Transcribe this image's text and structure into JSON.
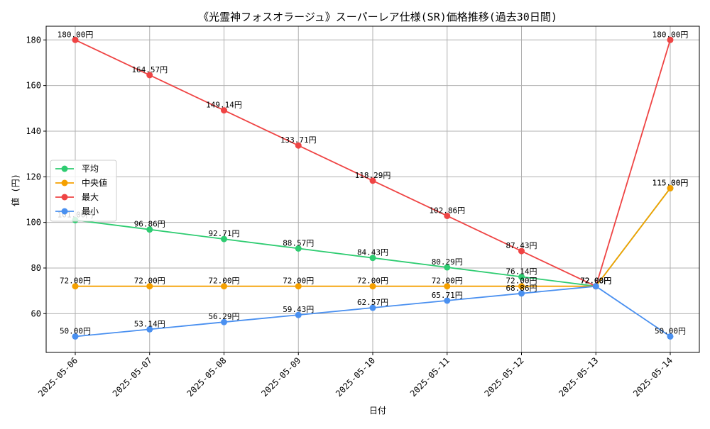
{
  "chart_data": {
    "type": "line",
    "title": "《光霊神フォスオラージュ》スーパーレア仕様(SR)価格推移(過去30日間)",
    "xlabel": "日付",
    "ylabel": "値 (円)",
    "x": [
      "2025-05-06",
      "2025-05-07",
      "2025-05-08",
      "2025-05-09",
      "2025-05-10",
      "2025-05-11",
      "2025-05-12",
      "2025-05-13",
      "2025-05-14"
    ],
    "ylim": [
      43,
      186
    ],
    "yticks": [
      60,
      80,
      100,
      120,
      140,
      160,
      180
    ],
    "grid": true,
    "legend_position": "center-left",
    "label_suffix": "円",
    "series": [
      {
        "name": "平均",
        "color": "#2ecc71",
        "values": [
          101.0,
          96.86,
          92.71,
          88.57,
          84.43,
          80.29,
          76.14,
          72.0,
          115.0
        ]
      },
      {
        "name": "中央値",
        "color": "#f5a000",
        "values": [
          72.0,
          72.0,
          72.0,
          72.0,
          72.0,
          72.0,
          72.0,
          72.0,
          115.0
        ]
      },
      {
        "name": "最大",
        "color": "#ef4444",
        "values": [
          180.0,
          164.57,
          149.14,
          133.71,
          118.29,
          102.86,
          87.43,
          72.0,
          180.0
        ]
      },
      {
        "name": "最小",
        "color": "#4a90f0",
        "values": [
          50.0,
          53.14,
          56.29,
          59.43,
          62.57,
          65.71,
          68.86,
          72.0,
          50.0
        ]
      }
    ]
  }
}
